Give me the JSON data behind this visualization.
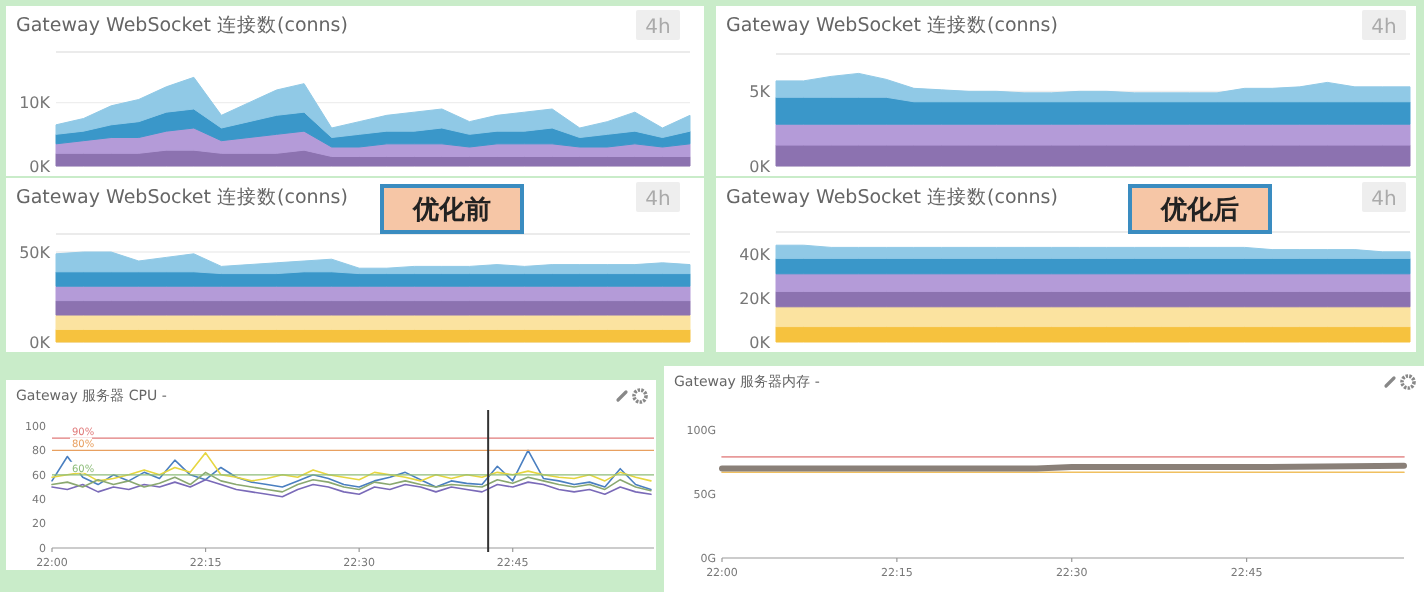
{
  "chart_data": [
    {
      "type": "area",
      "title": "Gateway WebSocket 连接数(conns)",
      "annotations": [
        "4h"
      ],
      "stacked": true,
      "grid": "y",
      "tick_labels": "y",
      "categories": [
        null,
        null,
        null,
        null,
        null,
        null,
        null,
        null,
        null,
        null,
        null,
        null,
        null,
        null,
        null,
        null,
        null,
        null,
        null,
        null,
        null,
        null,
        null,
        null
      ],
      "ylim": [
        0,
        18000
      ],
      "yticks": [
        {
          "value": 0,
          "label": "0K"
        },
        {
          "value": 10000,
          "label": "10K"
        }
      ],
      "series": [
        {
          "color": "#8c72b0",
          "values": [
            2000,
            2000,
            2000,
            2000,
            2500,
            2500,
            2000,
            2000,
            2000,
            2500,
            1500,
            1500,
            1500,
            1500,
            1500,
            1500,
            1500,
            1500,
            1500,
            1500,
            1500,
            1500,
            1500,
            1500
          ]
        },
        {
          "color": "#b49bd8",
          "values": [
            1500,
            2000,
            2500,
            2500,
            3000,
            3500,
            2000,
            2500,
            3000,
            3000,
            1500,
            1500,
            2000,
            2000,
            2000,
            1500,
            2000,
            2000,
            2000,
            1500,
            1500,
            2000,
            1500,
            2000
          ]
        },
        {
          "color": "#3a97c9",
          "values": [
            1500,
            1500,
            2000,
            2500,
            3000,
            3000,
            2000,
            2500,
            3000,
            3000,
            1500,
            2000,
            2000,
            2000,
            2500,
            2000,
            2000,
            2000,
            2500,
            1500,
            2000,
            2000,
            1500,
            2000
          ]
        },
        {
          "color": "#90c9e6",
          "values": [
            1500,
            2000,
            3000,
            3500,
            4000,
            5000,
            2000,
            3000,
            4000,
            4500,
            1500,
            2000,
            2500,
            3000,
            3000,
            2000,
            2500,
            3000,
            3000,
            1500,
            2000,
            3000,
            1500,
            2500
          ]
        }
      ]
    },
    {
      "type": "area",
      "title": "Gateway WebSocket 连接数(conns)",
      "annotations": [
        "4h"
      ],
      "stacked": true,
      "grid": "y",
      "tick_labels": "y",
      "categories": [
        null,
        null,
        null,
        null,
        null,
        null,
        null,
        null,
        null,
        null,
        null,
        null,
        null,
        null,
        null,
        null,
        null,
        null,
        null,
        null,
        null,
        null,
        null,
        null
      ],
      "ylim": [
        0,
        7500
      ],
      "yticks": [
        {
          "value": 0,
          "label": "0K"
        },
        {
          "value": 5000,
          "label": "5K"
        }
      ],
      "series": [
        {
          "color": "#8c72b0",
          "values": [
            1400,
            1400,
            1400,
            1400,
            1400,
            1400,
            1400,
            1400,
            1400,
            1400,
            1400,
            1400,
            1400,
            1400,
            1400,
            1400,
            1400,
            1400,
            1400,
            1400,
            1400,
            1400,
            1400,
            1400
          ]
        },
        {
          "color": "#b49bd8",
          "values": [
            1400,
            1400,
            1400,
            1400,
            1400,
            1400,
            1400,
            1400,
            1400,
            1400,
            1400,
            1400,
            1400,
            1400,
            1400,
            1400,
            1400,
            1400,
            1400,
            1400,
            1400,
            1400,
            1400,
            1400
          ]
        },
        {
          "color": "#3a97c9",
          "values": [
            1800,
            1800,
            1800,
            1800,
            1800,
            1500,
            1500,
            1500,
            1500,
            1500,
            1500,
            1500,
            1500,
            1500,
            1500,
            1500,
            1500,
            1500,
            1500,
            1500,
            1500,
            1500,
            1500,
            1500
          ]
        },
        {
          "color": "#90c9e6",
          "values": [
            1100,
            1100,
            1400,
            1600,
            1200,
            900,
            800,
            700,
            700,
            600,
            600,
            700,
            700,
            600,
            600,
            600,
            600,
            900,
            900,
            1000,
            1300,
            1000,
            1000,
            1000
          ]
        }
      ]
    },
    {
      "type": "area",
      "title": "Gateway WebSocket 连接数(conns)",
      "annotations": [
        "4h",
        "优化前"
      ],
      "stacked": true,
      "grid": "y",
      "tick_labels": "y",
      "categories": [
        null,
        null,
        null,
        null,
        null,
        null,
        null,
        null,
        null,
        null,
        null,
        null,
        null,
        null,
        null,
        null,
        null,
        null,
        null,
        null,
        null,
        null,
        null,
        null
      ],
      "ylim": [
        0,
        60000
      ],
      "yticks": [
        {
          "value": 0,
          "label": "0K"
        },
        {
          "value": 50000,
          "label": "50K"
        }
      ],
      "series": [
        {
          "color": "#f6c23e",
          "values": [
            7000,
            7000,
            7000,
            7000,
            7000,
            7000,
            7000,
            7000,
            7000,
            7000,
            7000,
            7000,
            7000,
            7000,
            7000,
            7000,
            7000,
            7000,
            7000,
            7000,
            7000,
            7000,
            7000,
            7000
          ]
        },
        {
          "color": "#fbe3a0",
          "values": [
            8000,
            8000,
            8000,
            8000,
            8000,
            8000,
            8000,
            8000,
            8000,
            8000,
            8000,
            8000,
            8000,
            8000,
            8000,
            8000,
            8000,
            8000,
            8000,
            8000,
            8000,
            8000,
            8000,
            8000
          ]
        },
        {
          "color": "#8c72b0",
          "values": [
            8000,
            8000,
            8000,
            8000,
            8000,
            8000,
            8000,
            8000,
            8000,
            8000,
            8000,
            8000,
            8000,
            8000,
            8000,
            8000,
            8000,
            8000,
            8000,
            8000,
            8000,
            8000,
            8000,
            8000
          ]
        },
        {
          "color": "#b49bd8",
          "values": [
            8000,
            8000,
            8000,
            8000,
            8000,
            8000,
            8000,
            8000,
            8000,
            8000,
            8000,
            8000,
            8000,
            8000,
            8000,
            8000,
            8000,
            8000,
            8000,
            8000,
            8000,
            8000,
            8000,
            8000
          ]
        },
        {
          "color": "#3a97c9",
          "values": [
            8000,
            8000,
            8000,
            8000,
            8000,
            8000,
            7000,
            7000,
            7000,
            8000,
            8000,
            7000,
            7000,
            7000,
            7000,
            7000,
            7000,
            7000,
            7000,
            7000,
            7000,
            7000,
            7000,
            7000
          ]
        },
        {
          "color": "#90c9e6",
          "values": [
            10000,
            11000,
            11000,
            6000,
            8000,
            10000,
            4000,
            5000,
            6000,
            6000,
            7000,
            3000,
            3000,
            4000,
            4000,
            4000,
            5000,
            4000,
            5000,
            5000,
            5000,
            5000,
            6000,
            5000
          ]
        }
      ]
    },
    {
      "type": "area",
      "title": "Gateway WebSocket 连接数(conns)",
      "annotations": [
        "4h",
        "优化后"
      ],
      "stacked": true,
      "tick_labels": "y",
      "categories": [
        null,
        null,
        null,
        null,
        null,
        null,
        null,
        null,
        null,
        null,
        null,
        null,
        null,
        null,
        null,
        null,
        null,
        null,
        null,
        null,
        null,
        null,
        null,
        null
      ],
      "ylim": [
        0,
        50000
      ],
      "yticks": [
        {
          "value": 0,
          "label": "0K"
        },
        {
          "value": 20000,
          "label": "20K"
        },
        {
          "value": 40000,
          "label": "40K"
        }
      ],
      "series": [
        {
          "color": "#f6c23e",
          "values": [
            7000,
            7000,
            7000,
            7000,
            7000,
            7000,
            7000,
            7000,
            7000,
            7000,
            7000,
            7000,
            7000,
            7000,
            7000,
            7000,
            7000,
            7000,
            7000,
            7000,
            7000,
            7000,
            7000,
            7000
          ]
        },
        {
          "color": "#fbe3a0",
          "values": [
            9000,
            9000,
            9000,
            9000,
            9000,
            9000,
            9000,
            9000,
            9000,
            9000,
            9000,
            9000,
            9000,
            9000,
            9000,
            9000,
            9000,
            9000,
            9000,
            9000,
            9000,
            9000,
            9000,
            9000
          ]
        },
        {
          "color": "#8c72b0",
          "values": [
            7000,
            7000,
            7000,
            7000,
            7000,
            7000,
            7000,
            7000,
            7000,
            7000,
            7000,
            7000,
            7000,
            7000,
            7000,
            7000,
            7000,
            7000,
            7000,
            7000,
            7000,
            7000,
            7000,
            7000
          ]
        },
        {
          "color": "#b49bd8",
          "values": [
            8000,
            8000,
            8000,
            8000,
            8000,
            8000,
            8000,
            8000,
            8000,
            8000,
            8000,
            8000,
            8000,
            8000,
            8000,
            8000,
            8000,
            8000,
            8000,
            8000,
            8000,
            8000,
            8000,
            8000
          ]
        },
        {
          "color": "#3a97c9",
          "values": [
            7000,
            7000,
            7000,
            7000,
            7000,
            7000,
            7000,
            7000,
            7000,
            7000,
            7000,
            7000,
            7000,
            7000,
            7000,
            7000,
            7000,
            7000,
            7000,
            7000,
            7000,
            7000,
            7000,
            7000
          ]
        },
        {
          "color": "#90c9e6",
          "values": [
            6000,
            6000,
            5000,
            5000,
            5000,
            5000,
            5000,
            5000,
            5000,
            5000,
            5000,
            5000,
            5000,
            5000,
            5000,
            5000,
            5000,
            5000,
            4000,
            4000,
            4000,
            4000,
            3000,
            3000
          ]
        }
      ]
    },
    {
      "type": "line",
      "title": "Gateway 服务器 CPU -",
      "x": [
        22,
        22.025,
        22.05,
        22.075,
        22.1,
        22.125,
        22.15,
        22.175,
        22.2,
        22.225,
        22.25,
        22.275,
        22.3,
        22.325,
        22.35,
        22.375,
        22.4,
        22.425,
        22.45,
        22.475,
        22.5,
        22.525,
        22.55,
        22.575,
        22.6,
        22.625,
        22.65,
        22.675,
        22.7,
        22.725,
        22.75,
        22.775,
        22.8,
        22.825,
        22.85,
        22.875,
        22.9,
        22.925,
        22.95,
        22.975
      ],
      "xlim": [
        22,
        22.98
      ],
      "xticks": [
        {
          "value": 22,
          "label": "22:00"
        },
        {
          "value": 22.25,
          "label": "22:15"
        },
        {
          "value": 22.5,
          "label": "22:30"
        },
        {
          "value": 22.75,
          "label": "22:45"
        }
      ],
      "ylim": [
        0,
        100
      ],
      "yticks": [
        0,
        20,
        40,
        60,
        80,
        100
      ],
      "ref_lines": [
        {
          "axis": "y",
          "value": 90,
          "label": "90%",
          "color": "#e07a7a"
        },
        {
          "axis": "y",
          "value": 80,
          "label": "80%",
          "color": "#e8a060"
        },
        {
          "axis": "y",
          "value": 60,
          "label": "60%",
          "color": "#8cbc78"
        },
        {
          "axis": "x",
          "value": 22.71,
          "color": "#333333"
        }
      ],
      "series": [
        {
          "color": "#4a7fc0",
          "values": [
            55,
            75,
            58,
            52,
            60,
            55,
            62,
            57,
            72,
            60,
            56,
            66,
            58,
            54,
            52,
            50,
            55,
            60,
            57,
            52,
            50,
            55,
            58,
            62,
            56,
            50,
            55,
            53,
            52,
            67,
            55,
            80,
            57,
            55,
            52,
            54,
            50,
            65,
            52,
            48
          ]
        },
        {
          "color": "#e6d640",
          "values": [
            58,
            60,
            62,
            55,
            57,
            60,
            64,
            60,
            66,
            62,
            78,
            60,
            58,
            55,
            57,
            60,
            58,
            64,
            60,
            58,
            56,
            62,
            60,
            58,
            55,
            60,
            57,
            60,
            58,
            62,
            60,
            63,
            60,
            58,
            57,
            60,
            55,
            62,
            58,
            55
          ]
        },
        {
          "color": "#7a6ab8",
          "values": [
            50,
            48,
            52,
            46,
            50,
            48,
            52,
            50,
            54,
            50,
            56,
            52,
            48,
            46,
            44,
            42,
            48,
            52,
            50,
            46,
            44,
            50,
            48,
            52,
            50,
            46,
            50,
            48,
            46,
            52,
            50,
            54,
            52,
            48,
            46,
            48,
            44,
            50,
            46,
            44
          ]
        },
        {
          "color": "#8aa870",
          "values": [
            52,
            54,
            50,
            56,
            52,
            55,
            50,
            53,
            58,
            52,
            62,
            55,
            52,
            50,
            48,
            46,
            52,
            56,
            54,
            50,
            48,
            54,
            52,
            55,
            52,
            50,
            52,
            51,
            50,
            56,
            53,
            58,
            55,
            52,
            50,
            52,
            48,
            56,
            50,
            47
          ]
        }
      ]
    },
    {
      "type": "line",
      "title": "Gateway 服务器内存 -",
      "xlim": [
        22,
        22.975
      ],
      "xticks": [
        {
          "value": 22,
          "label": "22:00"
        },
        {
          "value": 22.25,
          "label": "22:15"
        },
        {
          "value": 22.5,
          "label": "22:30"
        },
        {
          "value": 22.75,
          "label": "22:45"
        }
      ],
      "ylim": [
        0,
        100
      ],
      "yticks": [
        {
          "value": 0,
          "label": "0G"
        },
        {
          "value": 50,
          "label": "50G"
        },
        {
          "value": 100,
          "label": "100G"
        }
      ],
      "series": [
        {
          "color": "#e89a9a",
          "x": [
            22,
            22.975
          ],
          "values": [
            79,
            79
          ]
        },
        {
          "color": "#f0c060",
          "x": [
            22,
            22.975
          ],
          "values": [
            67,
            67
          ]
        },
        {
          "color": "#8a8078",
          "x": [
            22,
            22.25,
            22.45,
            22.5,
            22.75,
            22.975
          ],
          "values": [
            70,
            70,
            70,
            71,
            71,
            72
          ]
        }
      ]
    }
  ]
}
